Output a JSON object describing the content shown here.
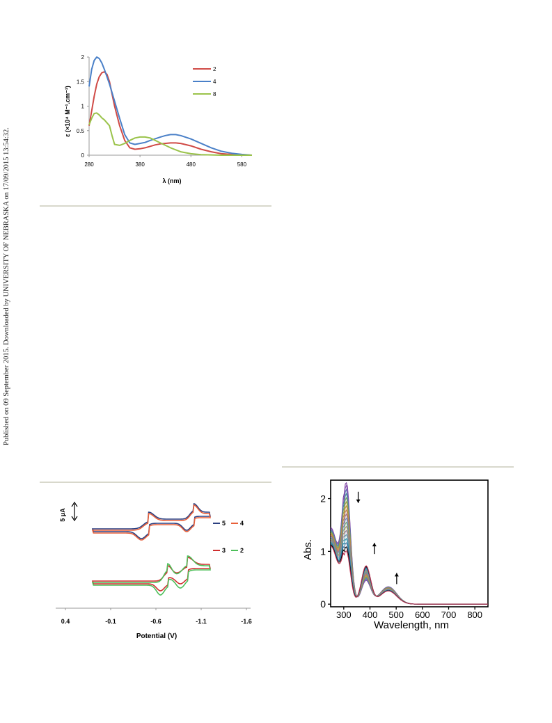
{
  "side_note": "Published on 09 September 2015. Downloaded by UNIVERSITY OF NEBRASKA on 17/09/2015 13:54:32.",
  "chart_data": [
    {
      "type": "line",
      "xlabel": "λ (nm)",
      "ylabel": "ε (×10⁴ M⁻¹.cm⁻¹)",
      "xlim": [
        280,
        600
      ],
      "ylim": [
        0,
        2
      ],
      "xticks": [
        "280",
        "380",
        "480",
        "580"
      ],
      "yticks": [
        "0",
        "0.5",
        "1",
        "1.5",
        "2"
      ],
      "legend_position": "right",
      "colors": {
        "2": "#d04a46",
        "4": "#4a80c8",
        "8": "#9ac34a"
      },
      "series": [
        {
          "name": "2",
          "x": [
            280,
            285,
            290,
            295,
            300,
            305,
            310,
            315,
            320,
            325,
            330,
            340,
            350,
            360,
            370,
            380,
            390,
            400,
            410,
            420,
            440,
            450,
            460,
            480,
            500,
            520,
            540,
            560,
            580,
            600
          ],
          "y": [
            0.6,
            0.9,
            1.2,
            1.45,
            1.6,
            1.68,
            1.7,
            1.65,
            1.5,
            1.25,
            1.0,
            0.6,
            0.3,
            0.15,
            0.12,
            0.13,
            0.15,
            0.18,
            0.21,
            0.23,
            0.25,
            0.25,
            0.24,
            0.19,
            0.12,
            0.07,
            0.03,
            0.015,
            0.005,
            0.0
          ]
        },
        {
          "name": "4",
          "x": [
            280,
            285,
            290,
            295,
            300,
            305,
            310,
            320,
            330,
            340,
            350,
            360,
            370,
            380,
            390,
            400,
            420,
            430,
            440,
            450,
            460,
            480,
            500,
            520,
            540,
            560,
            580,
            600
          ],
          "y": [
            1.4,
            1.75,
            1.93,
            2.0,
            1.97,
            1.88,
            1.75,
            1.45,
            1.1,
            0.75,
            0.42,
            0.25,
            0.22,
            0.24,
            0.26,
            0.3,
            0.37,
            0.4,
            0.42,
            0.42,
            0.4,
            0.33,
            0.24,
            0.15,
            0.08,
            0.04,
            0.015,
            0.0
          ]
        },
        {
          "name": "8",
          "x": [
            280,
            285,
            290,
            295,
            300,
            305,
            310,
            320,
            325,
            330,
            340,
            350,
            360,
            370,
            380,
            390,
            400,
            410,
            420,
            440,
            460,
            480,
            500,
            520,
            540,
            600
          ],
          "y": [
            0.62,
            0.75,
            0.85,
            0.86,
            0.82,
            0.76,
            0.72,
            0.6,
            0.4,
            0.22,
            0.2,
            0.24,
            0.3,
            0.35,
            0.37,
            0.37,
            0.35,
            0.3,
            0.25,
            0.15,
            0.07,
            0.03,
            0.01,
            0.005,
            0.0,
            0.0
          ]
        }
      ]
    },
    {
      "type": "line",
      "xlabel": "Potential (V)",
      "xlim": [
        0.4,
        -1.6
      ],
      "xticks": [
        "0.4",
        "-0.1",
        "-0.6",
        "-1.1",
        "-1.6"
      ],
      "scale_bar_label": "5 μA",
      "legend_position": "right",
      "colors": {
        "5": "#2b3f80",
        "4": "#e8603a",
        "3": "#cf2e2e",
        "2": "#4dbf5a"
      },
      "series_names": [
        "5",
        "4",
        "3",
        "2"
      ]
    },
    {
      "type": "line",
      "xlabel": "Wavelength, nm",
      "ylabel": "Abs.",
      "xlim": [
        250,
        850
      ],
      "ylim": [
        -0.05,
        2.35
      ],
      "xticks": [
        "300",
        "400",
        "500",
        "600",
        "700",
        "800"
      ],
      "yticks": [
        "0",
        "1",
        "2"
      ],
      "peaks_nm": [
        310,
        385,
        470
      ],
      "peak_max_start": 2.25,
      "peak_max_end": 0.95,
      "curve_count": 18
    }
  ]
}
